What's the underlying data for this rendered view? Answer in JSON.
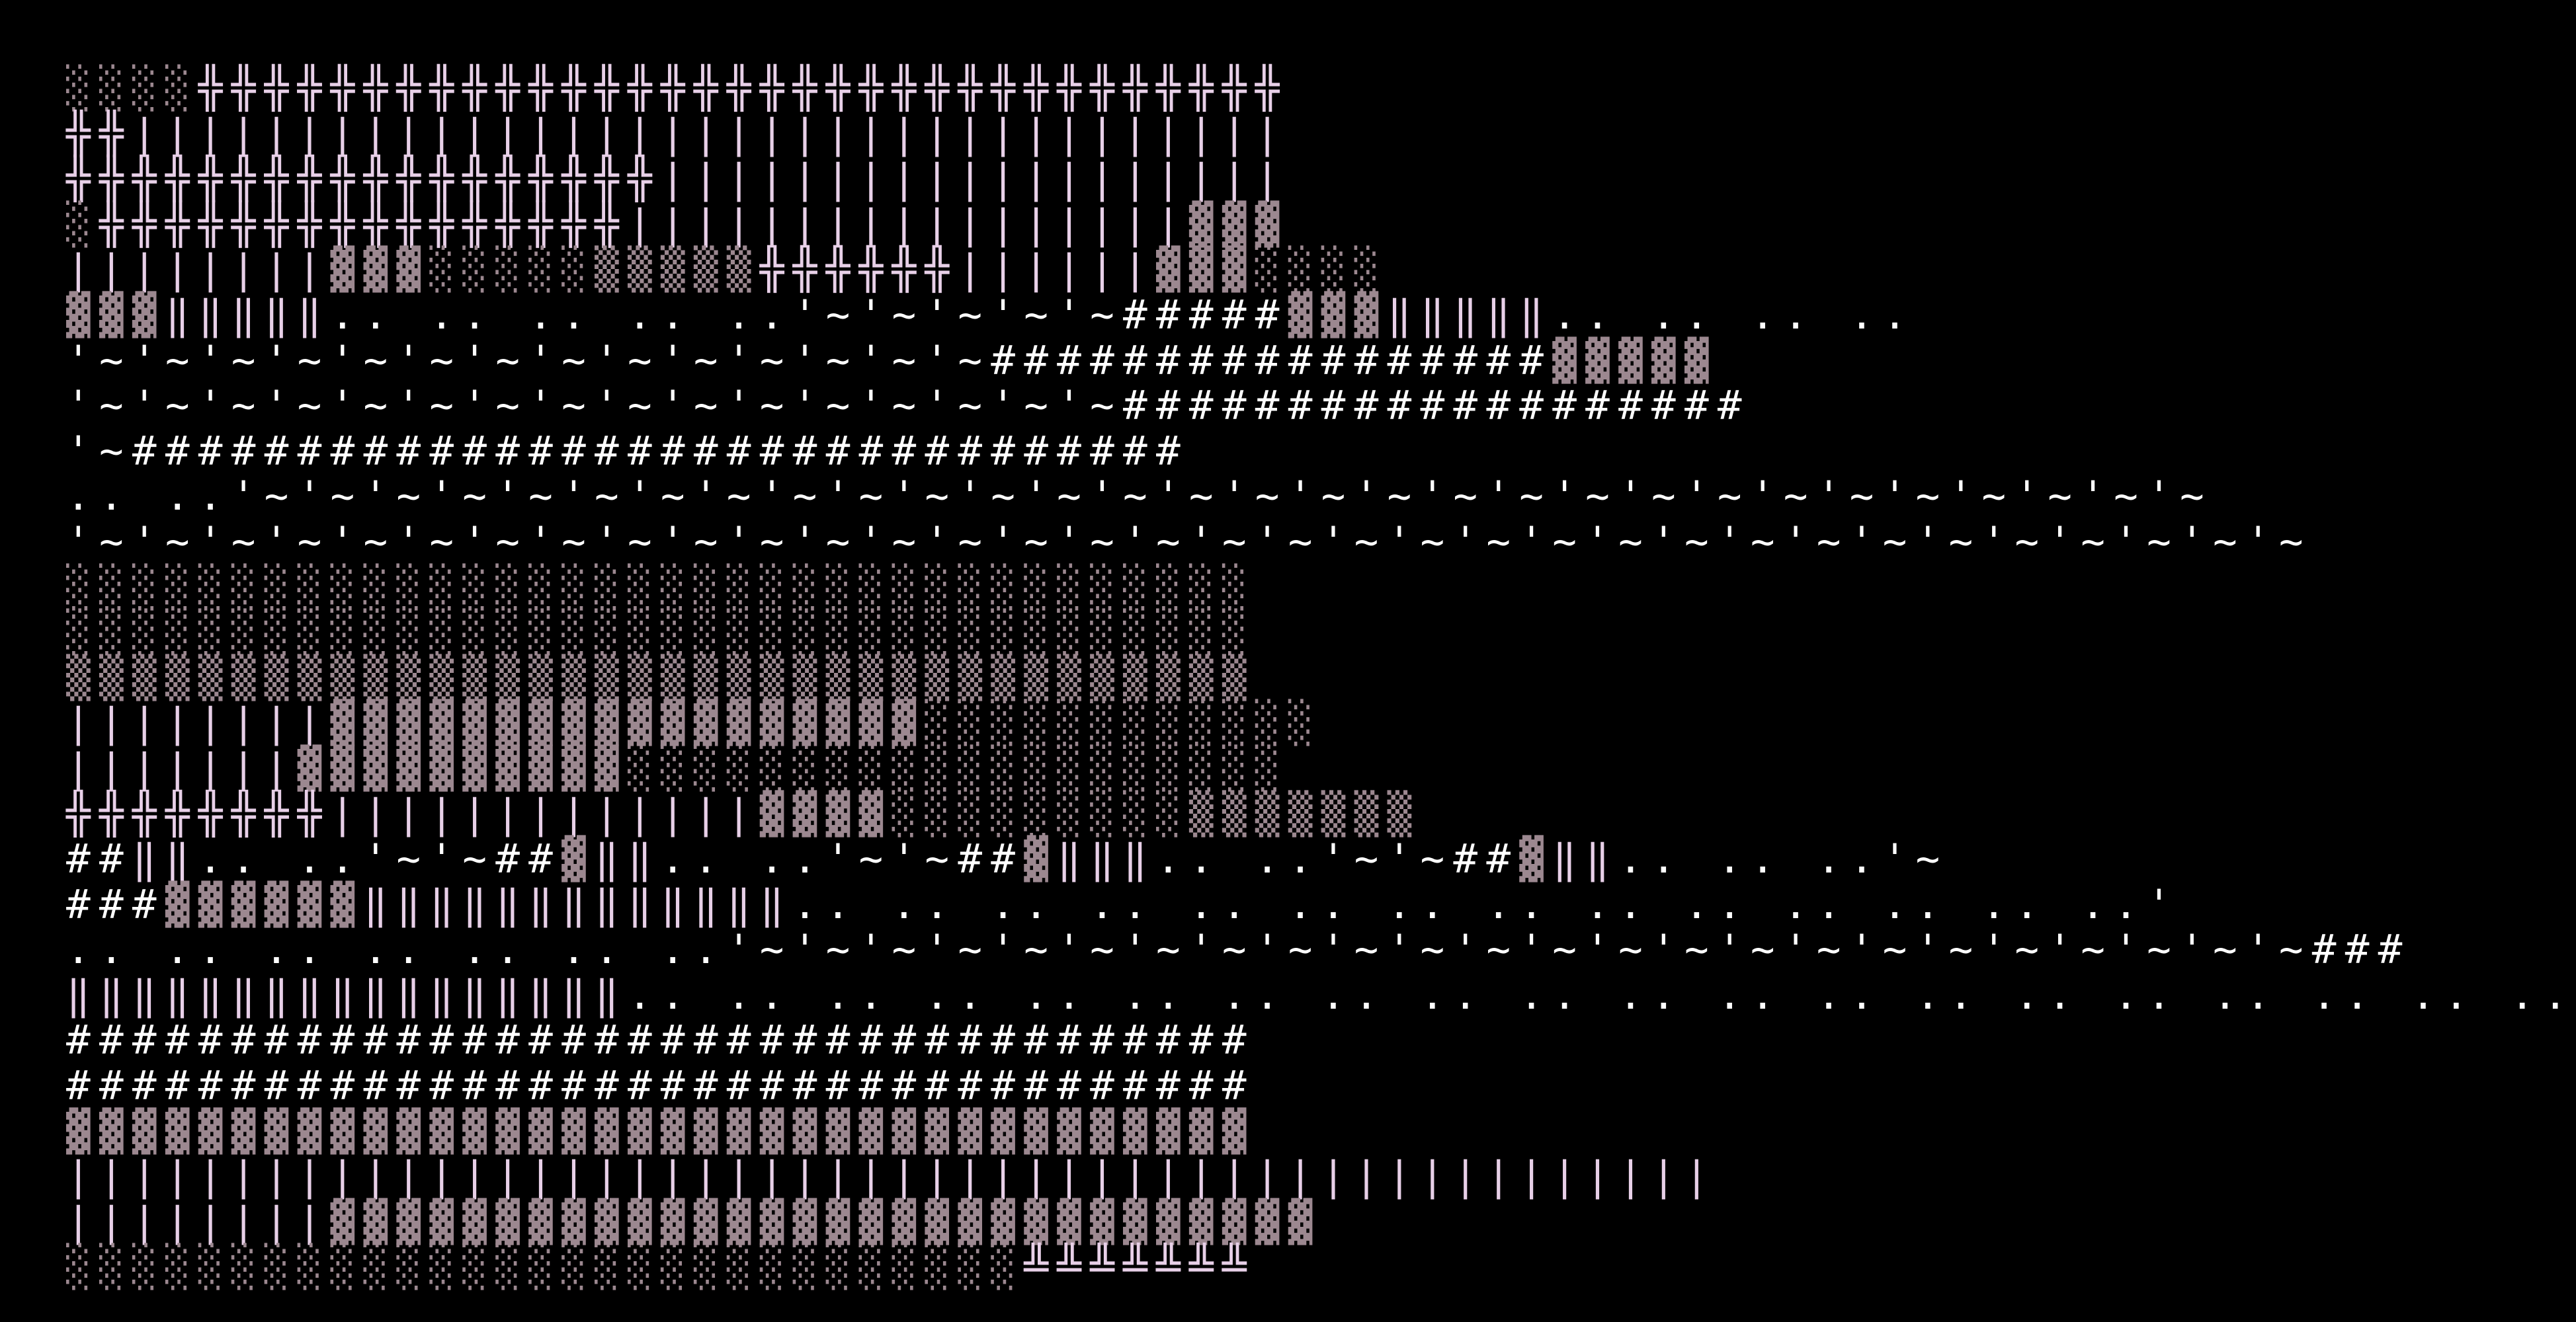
{
  "colors": {
    "background": "#000000",
    "glyph_lilac": "#e8d0e8",
    "glyph_white": "#ffffff",
    "glyph_mauve": "#9c8890"
  },
  "rows": [
    "░░░░╬╬╬╬╬╬╬╬╬╬╬╬╬╬╬╬╬╬╬╬╬╬╬╬╬╬╬╬╬╬╬╬╬",
    "╬╬|||||||||||||||||||||||||||||||||||",
    "╬╬╬╬╬╬╬╬╬╬╬╬╬╬╬╬╬╬|||||||||||||||||||",
    "░╬╬╬╬╬╬╬╬╬╬╬╬╬╬╬╬|||||||||||||||||▓▓▓",
    "||||||||▓▓▓░░░░░▒▒▒▒▒╬╬╬╬╬╬||||||▓▓▓░░░░",
    "▓▓▓‖‖‖‖‖.. .. .. .. ..'~'~'~'~'~#####▓▓▓‖‖‖‖‖.. .. .. ..",
    "'~'~'~'~'~'~'~'~'~'~'~'~'~'~#################▓▓▓▓▓",
    "'~'~'~'~'~'~'~'~'~'~'~'~'~'~'~'~###################",
    "'~################################",
    ".. ..'~'~'~'~'~'~'~'~'~'~'~'~'~'~'~'~'~'~'~'~'~'~'~'~'~'~'~'~'~'~",
    "'~'~'~'~'~'~'~'~'~'~'~'~'~'~'~'~'~'~'~'~'~'~'~'~'~'~'~'~'~'~'~'~'~'~",
    "░░░░░░░░░░░░░░░░░░░░░░░░░░░░░░░░░░░░",
    "░░░░░░░░░░░░░░░░░░░░░░░░░░░░░░░░░░░░",
    "▒▒▒▒▒▒▒▒▒▒▒▒▒▒▒▒▒▒▒▒▒▒▒▒▒▒▒▒▒▒▒▒▒▒▒▒",
    "||||||||▓▓▓▓▓▓▓▓▓▓▓▓▓▓▓▓▓▓░░░░░░░░░░░░",
    "|||||||▓▓▓▓▓▓▓▓▓▓░░░░░░░░░░░░░░░░░░░░",
    "╬╬╬╬╬╬╬╬|||||||||||||▓▓▓▓░░░░░░░░░▒▒▒▒▒▒▒",
    "##‖‖.. ..'~'~##▓‖‖.. ..'~'~##▓‖‖‖.. ..'~'~##▓‖‖.. .. ..'~",
    "###▓▓▓▓▓▓‖‖‖‖‖‖‖‖‖‖‖‖‖.. .. .. .. .. .. .. .. .. .. .. .. .. ..'",
    ".. .. .. .. .. .. ..'~'~'~'~'~'~'~'~'~'~'~'~'~'~'~'~'~'~'~'~'~'~'~'~###",
    "‖‖‖‖‖‖‖‖‖‖‖‖‖‖‖‖‖.. .. .. .. .. .. .. .. .. .. .. .. .. .. .. .. .. .. .. ..",
    "####################################",
    "####################################",
    "▓▓▓▓▓▓▓▓▓▓▓▓▓▓▓▓▓▓▓▓▓▓▓▓▓▓▓▓▓▓▓▓▓▓▓▓",
    "||||||||||||||||||||||||||||||||||||||||||||||||||",
    "||||||||▓▓▓▓▓▓▓▓▓▓▓▓▓▓▓▓▓▓▓▓▓▓▓▓▓▓▓▓▓▓",
    "░░░░░░░░░░░░░░░░░░░░░░░░░░░░░╩╩╩╩╩╩╩"
  ]
}
